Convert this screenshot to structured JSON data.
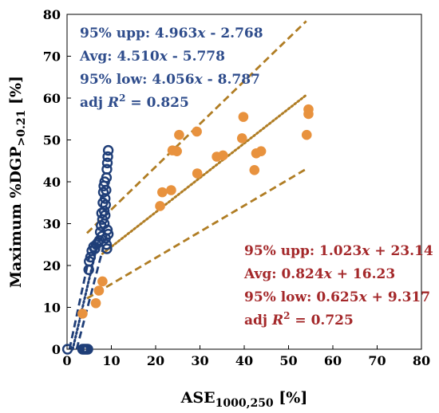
{
  "chart_data": {
    "type": "scatter",
    "xlabel": {
      "main": "ASE",
      "sub": "1000,250",
      "unit": " [%]"
    },
    "ylabel": {
      "main": "Maximum %DGP",
      "sub": ">0.21",
      "unit": " [%]"
    },
    "xlim": [
      0,
      80
    ],
    "ylim": [
      0,
      80
    ],
    "xticks": [
      "0",
      "10",
      "20",
      "30",
      "40",
      "50",
      "60",
      "70",
      "80"
    ],
    "yticks": [
      "0",
      "10",
      "20",
      "30",
      "40",
      "50",
      "60",
      "70",
      "80"
    ],
    "grid": false,
    "colors": {
      "blue": "#1f3e78",
      "orange": "#e8923e",
      "red_text": "#a4282a",
      "blue_text": "#2f4d8c",
      "fit_line": "#b07d24"
    },
    "series": [
      {
        "marker": "open-circle",
        "color": "#1f3e78",
        "points": [
          [
            0.1,
            0
          ],
          [
            3.5,
            0
          ],
          [
            3.8,
            0
          ],
          [
            4.1,
            0
          ],
          [
            4.4,
            0
          ],
          [
            4.7,
            0
          ],
          [
            4.9,
            19
          ],
          [
            5.0,
            21
          ],
          [
            5.3,
            22
          ],
          [
            5.6,
            23.5
          ],
          [
            6.0,
            24.5
          ],
          [
            6.3,
            24
          ],
          [
            6.6,
            25
          ],
          [
            7.0,
            25.5
          ],
          [
            7.3,
            26
          ],
          [
            7.5,
            28
          ],
          [
            7.7,
            29.5
          ],
          [
            7.9,
            27
          ],
          [
            8.0,
            31
          ],
          [
            8.1,
            35
          ],
          [
            8.2,
            37.5
          ],
          [
            8.3,
            39
          ],
          [
            8.4,
            33
          ],
          [
            8.5,
            40
          ],
          [
            8.6,
            36
          ],
          [
            8.7,
            34.5
          ],
          [
            8.8,
            38
          ],
          [
            8.9,
            41
          ],
          [
            9.0,
            43
          ],
          [
            9.1,
            44.5
          ],
          [
            9.2,
            46
          ],
          [
            9.3,
            47.5
          ],
          [
            8.7,
            26.5
          ],
          [
            8.9,
            25
          ],
          [
            9.1,
            28.5
          ],
          [
            9.3,
            27.5
          ],
          [
            8.4,
            30
          ],
          [
            8.6,
            32
          ],
          [
            9.0,
            24
          ],
          [
            7.8,
            32.5
          ]
        ]
      },
      {
        "marker": "filled-circle",
        "color": "#e8923e",
        "points": [
          [
            3.5,
            8.5
          ],
          [
            6.5,
            11
          ],
          [
            7.2,
            14
          ],
          [
            8.0,
            16.2
          ],
          [
            21,
            34.2
          ],
          [
            21.5,
            37.5
          ],
          [
            23.5,
            38
          ],
          [
            23.8,
            47.5
          ],
          [
            24.8,
            47.3
          ],
          [
            25.3,
            51.2
          ],
          [
            29.3,
            52
          ],
          [
            29.4,
            42
          ],
          [
            33.8,
            46
          ],
          [
            35.2,
            46.3
          ],
          [
            39.5,
            50.4
          ],
          [
            39.8,
            55.5
          ],
          [
            42.3,
            42.8
          ],
          [
            42.7,
            46.8
          ],
          [
            43.8,
            47.3
          ],
          [
            54.1,
            51.2
          ],
          [
            54.5,
            56.2
          ],
          [
            54.5,
            57.3
          ]
        ]
      }
    ],
    "fit_lines": [
      {
        "style": "dashed",
        "color": "#1f3e78",
        "slope": 4.963,
        "intercept": -2.768,
        "x_range": [
          0.56,
          5.4
        ]
      },
      {
        "style": "dotted",
        "color": "#1f3e78",
        "slope": 4.51,
        "intercept": -5.778,
        "x_range": [
          1.28,
          7.0
        ]
      },
      {
        "style": "dashed",
        "color": "#1f3e78",
        "slope": 4.056,
        "intercept": -8.787,
        "x_range": [
          2.17,
          8.5
        ]
      },
      {
        "style": "dashed",
        "color": "#b07d24",
        "slope": 1.023,
        "intercept": 23.14,
        "x_range": [
          4.5,
          54
        ]
      },
      {
        "style": "dotted",
        "color": "#b07d24",
        "slope": 0.824,
        "intercept": 16.23,
        "x_range": [
          8.0,
          54
        ]
      },
      {
        "style": "dashed",
        "color": "#b07d24",
        "slope": 0.625,
        "intercept": 9.317,
        "x_range": [
          4.5,
          54
        ]
      }
    ],
    "annotations_blue": [
      {
        "pre": "95% upp: 4.963",
        "var": "x",
        "post": " - 2.768"
      },
      {
        "pre": "Avg: 4.510",
        "var": "x",
        "post": " - 5.778"
      },
      {
        "pre": "95% low: 4.056",
        "var": "x",
        "post": " - 8.787"
      },
      {
        "pre": "adj ",
        "var": "R",
        "sup": "2",
        "post": " = 0.825"
      }
    ],
    "annotations_red": [
      {
        "pre": "95% upp: 1.023",
        "var": "x",
        "post": " + 23.14"
      },
      {
        "pre": "Avg: 0.824",
        "var": "x",
        "post": " + 16.23"
      },
      {
        "pre": "95% low: 0.625",
        "var": "x",
        "post": " + 9.317"
      },
      {
        "pre": "adj ",
        "var": "R",
        "sup": "2",
        "post": " = 0.725"
      }
    ]
  }
}
